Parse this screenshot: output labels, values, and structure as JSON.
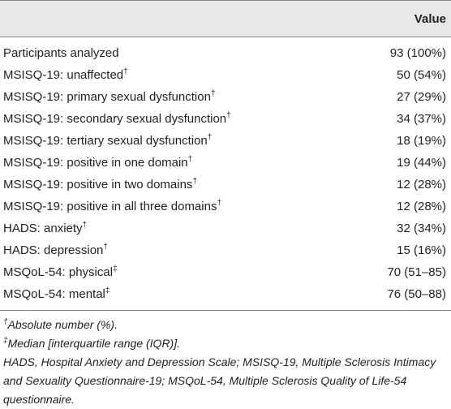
{
  "table": {
    "header": {
      "value": "Value"
    },
    "rows": [
      {
        "label": "Participants analyzed",
        "value": "93 (100%)"
      },
      {
        "label": "MSISQ-19: unaffected",
        "mark": "†",
        "value": "50 (54%)"
      },
      {
        "label": "MSISQ-19: primary sexual dysfunction",
        "mark": "†",
        "value": "27 (29%)"
      },
      {
        "label": "MSISQ-19: secondary sexual dysfunction",
        "mark": "†",
        "value": "34 (37%)"
      },
      {
        "label": "MSISQ-19: tertiary sexual dysfunction",
        "mark": "†",
        "value": "18 (19%)"
      },
      {
        "label": "MSISQ-19: positive in one domain",
        "mark": "†",
        "value": "19 (44%)"
      },
      {
        "label": "MSISQ-19: positive in two domains",
        "mark": "†",
        "value": "12 (28%)"
      },
      {
        "label": "MSISQ-19: positive in all three domains",
        "mark": "†",
        "value": "12 (28%)"
      },
      {
        "label": "HADS: anxiety",
        "mark": "†",
        "value": "32 (34%)"
      },
      {
        "label": "HADS: depression",
        "mark": "†",
        "value": "15 (16%)"
      },
      {
        "label": "MSQoL-54: physical",
        "mark": "‡",
        "value": "70 (51–85)"
      },
      {
        "label": "MSQoL-54: mental",
        "mark": "‡",
        "value": "76 (50–88)"
      }
    ],
    "footnotes": [
      {
        "mark": "†",
        "text": "Absolute number (%)."
      },
      {
        "mark": "‡",
        "text": "Median [interquartile range (IQR)]."
      }
    ],
    "abbreviations": "HADS, Hospital Anxiety and Depression Scale; MSISQ-19, Multiple Sclerosis Intimacy and Sexuality Questionnaire-19; MSQoL-54, Multiple Sclerosis Quality of Life-54 questionnaire."
  }
}
